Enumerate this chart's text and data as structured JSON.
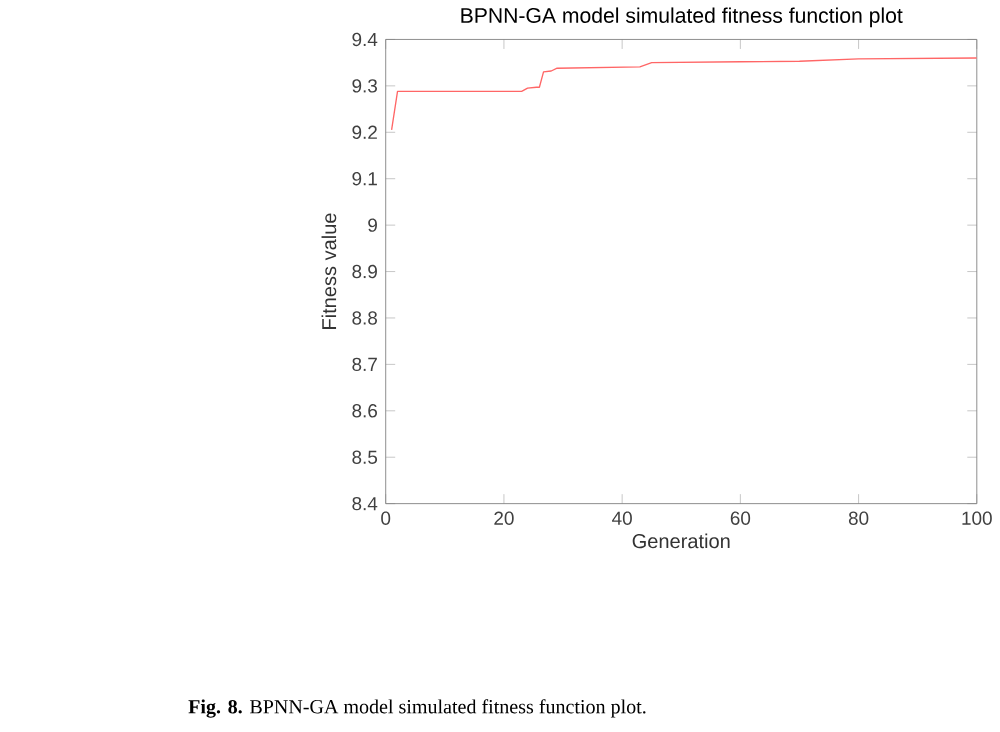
{
  "chart_data": {
    "type": "line",
    "title": "BPNN-GA model simulated fitness function plot",
    "xlabel": "Generation",
    "ylabel": "Fitness value",
    "annotations": [
      "**Fig. 8.** BPNN-GA model simulated fitness function plot."
    ],
    "x": [
      1,
      2,
      23,
      24,
      25.5,
      26,
      26.7,
      28,
      29,
      43,
      45,
      60,
      70,
      80,
      100
    ],
    "series": [
      {
        "color": "#ff6666",
        "values": [
          9.205,
          9.288,
          9.288,
          9.295,
          9.297,
          9.297,
          9.33,
          9.332,
          9.338,
          9.341,
          9.35,
          9.352,
          9.353,
          9.358,
          9.36
        ]
      }
    ],
    "xlim": [
      0,
      100
    ],
    "ylim": [
      8.4,
      9.4
    ],
    "xticks": [
      0,
      20,
      40,
      60,
      80,
      100
    ],
    "yticks": [
      8.4,
      8.5,
      8.6,
      8.7,
      8.8,
      8.9,
      9,
      9.1,
      9.2,
      9.3,
      9.4
    ],
    "grid": false,
    "legend": false,
    "marker": "none",
    "line_style": "solid"
  }
}
